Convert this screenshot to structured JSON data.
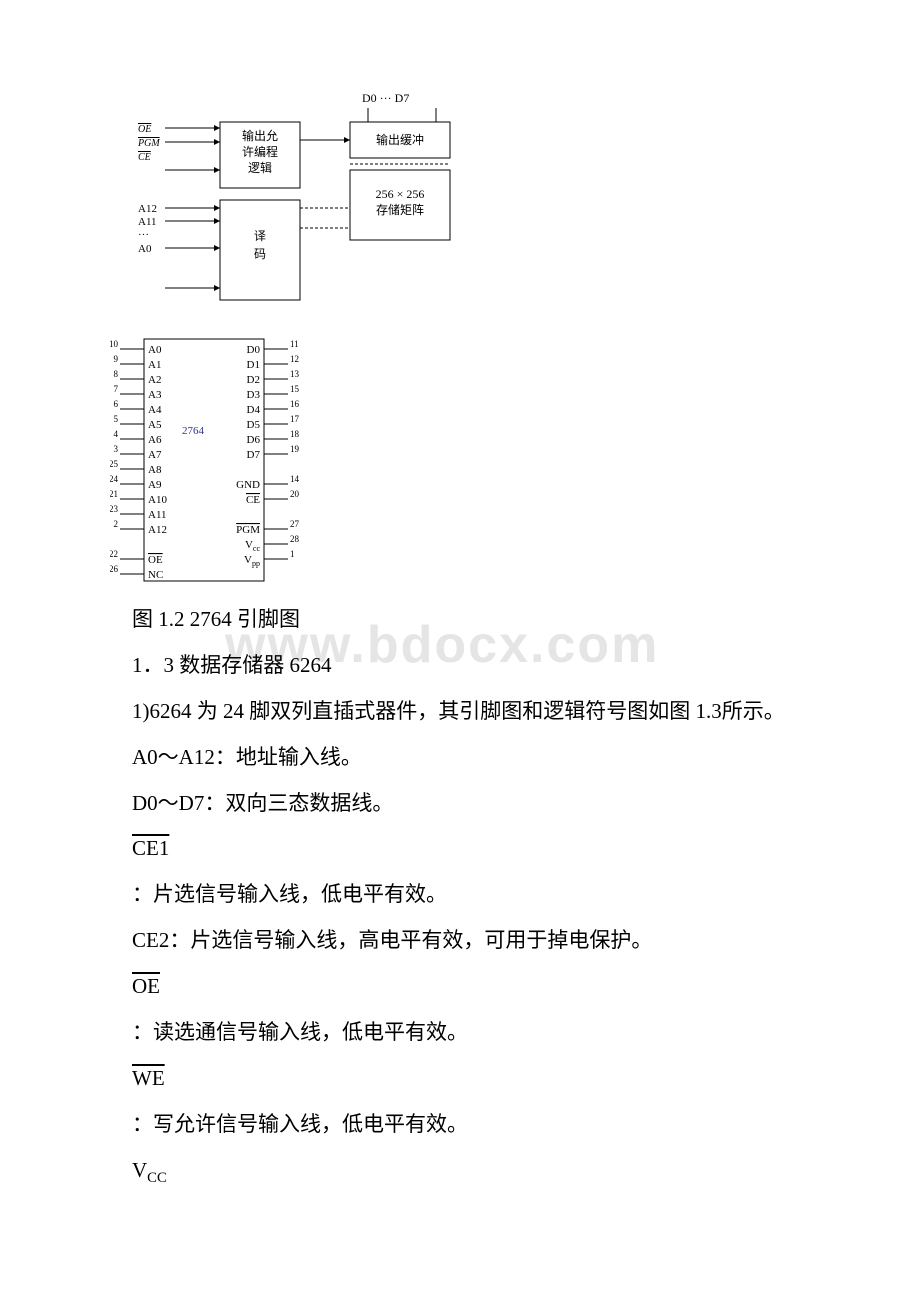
{
  "block_diagram": {
    "data_label": "D0   ···   D7",
    "ctrl_signals": [
      "OE",
      "PGM",
      "CE"
    ],
    "logic_block": "输出允\n许编程\n逻辑",
    "buffer_block": "输出缓冲",
    "matrix_block": "256 × 256\n存储矩阵",
    "addr_top": "A12",
    "addr_mid": "A11",
    "addr_dots": "···",
    "addr_bot": "A0",
    "decoder_block": "译\n码",
    "box_stroke": "#000000",
    "text_color": "#000000",
    "fontsize_label": 12,
    "fontsize_small": 10
  },
  "pinout": {
    "chip_label": "2764",
    "chip_label_color": "#3030a0",
    "left_pins": [
      {
        "num": "10",
        "name": "A0"
      },
      {
        "num": "9",
        "name": "A1"
      },
      {
        "num": "8",
        "name": "A2"
      },
      {
        "num": "7",
        "name": "A3"
      },
      {
        "num": "6",
        "name": "A4"
      },
      {
        "num": "5",
        "name": "A5"
      },
      {
        "num": "4",
        "name": "A6"
      },
      {
        "num": "3",
        "name": "A7"
      },
      {
        "num": "25",
        "name": "A8"
      },
      {
        "num": "24",
        "name": "A9"
      },
      {
        "num": "21",
        "name": "A10"
      },
      {
        "num": "23",
        "name": "A11"
      },
      {
        "num": "2",
        "name": "A12"
      },
      {
        "num": "",
        "name": ""
      },
      {
        "num": "22",
        "name": "OE",
        "overline": true
      },
      {
        "num": "26",
        "name": "NC"
      }
    ],
    "right_pins": [
      {
        "num": "11",
        "name": "D0"
      },
      {
        "num": "12",
        "name": "D1"
      },
      {
        "num": "13",
        "name": "D2"
      },
      {
        "num": "15",
        "name": "D3"
      },
      {
        "num": "16",
        "name": "D4"
      },
      {
        "num": "17",
        "name": "D5"
      },
      {
        "num": "18",
        "name": "D6"
      },
      {
        "num": "19",
        "name": "D7"
      },
      {
        "num": "",
        "name": ""
      },
      {
        "num": "14",
        "name": "GND"
      },
      {
        "num": "20",
        "name": "CE",
        "overline": true
      },
      {
        "num": "",
        "name": ""
      },
      {
        "num": "27",
        "name": "PGM",
        "overline": true
      },
      {
        "num": "28",
        "name": "Vcc",
        "sub": true
      },
      {
        "num": "1",
        "name": "Vpp",
        "sub": true
      }
    ],
    "stroke": "#000000",
    "fontsize": 10
  },
  "caption1": "图 1.2 2764 引脚图",
  "heading13": "1．3 数据存储器 6264",
  "para1": "1)6264 为 24 脚双列直插式器件，其引脚图和逻辑符号图如图 1.3所示。",
  "line_addr": "A0～A12：地址输入线。",
  "line_data": "D0～D7：双向三态数据线。",
  "sig_ce1": "CE1",
  "desc_ce1": "：片选信号输入线，低电平有效。",
  "line_ce2": "CE2：片选信号输入线，高电平有效，可用于掉电保护。",
  "sig_oe": "OE",
  "desc_oe": "：读选通信号输入线，低电平有效。",
  "sig_we": "WE",
  "desc_we": "：写允许信号输入线，低电平有效。",
  "sig_vcc_v": "V",
  "sig_vcc_cc": "CC",
  "watermark": "www.bdocx.com"
}
